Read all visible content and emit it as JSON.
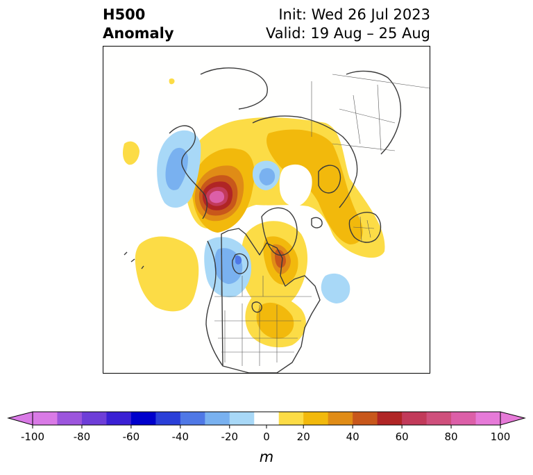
{
  "header": {
    "variable_line1": "H500",
    "variable_line2": "Anomaly",
    "init_label": "Init: Wed 26 Jul 2023",
    "valid_label": "Valid: 19 Aug – 25 Aug"
  },
  "map": {
    "projection": "north-polar stereographic",
    "coastlines": true,
    "borders": true
  },
  "colorbar": {
    "unit": "m",
    "extend": "both",
    "levels": [
      -100,
      -90,
      -80,
      -70,
      -60,
      -50,
      -40,
      -30,
      -20,
      -10,
      10,
      20,
      30,
      40,
      50,
      60,
      70,
      80,
      90,
      100
    ],
    "colors": [
      "#d97ae6",
      "#9c55dd",
      "#6e3ed8",
      "#3a20d4",
      "#0000cc",
      "#2a3fd8",
      "#4f78e6",
      "#79b1f0",
      "#a8d8f7",
      "#ffffff",
      "#fcdc46",
      "#f2b90c",
      "#e08c16",
      "#c8571b",
      "#b02525",
      "#c23a5a",
      "#cf4f7c",
      "#dc5fa8",
      "#e67ad8"
    ],
    "tick_labels": [
      "-100",
      "-80",
      "-60",
      "-40",
      "-20",
      "0",
      "20",
      "40",
      "60",
      "80",
      "100"
    ]
  }
}
